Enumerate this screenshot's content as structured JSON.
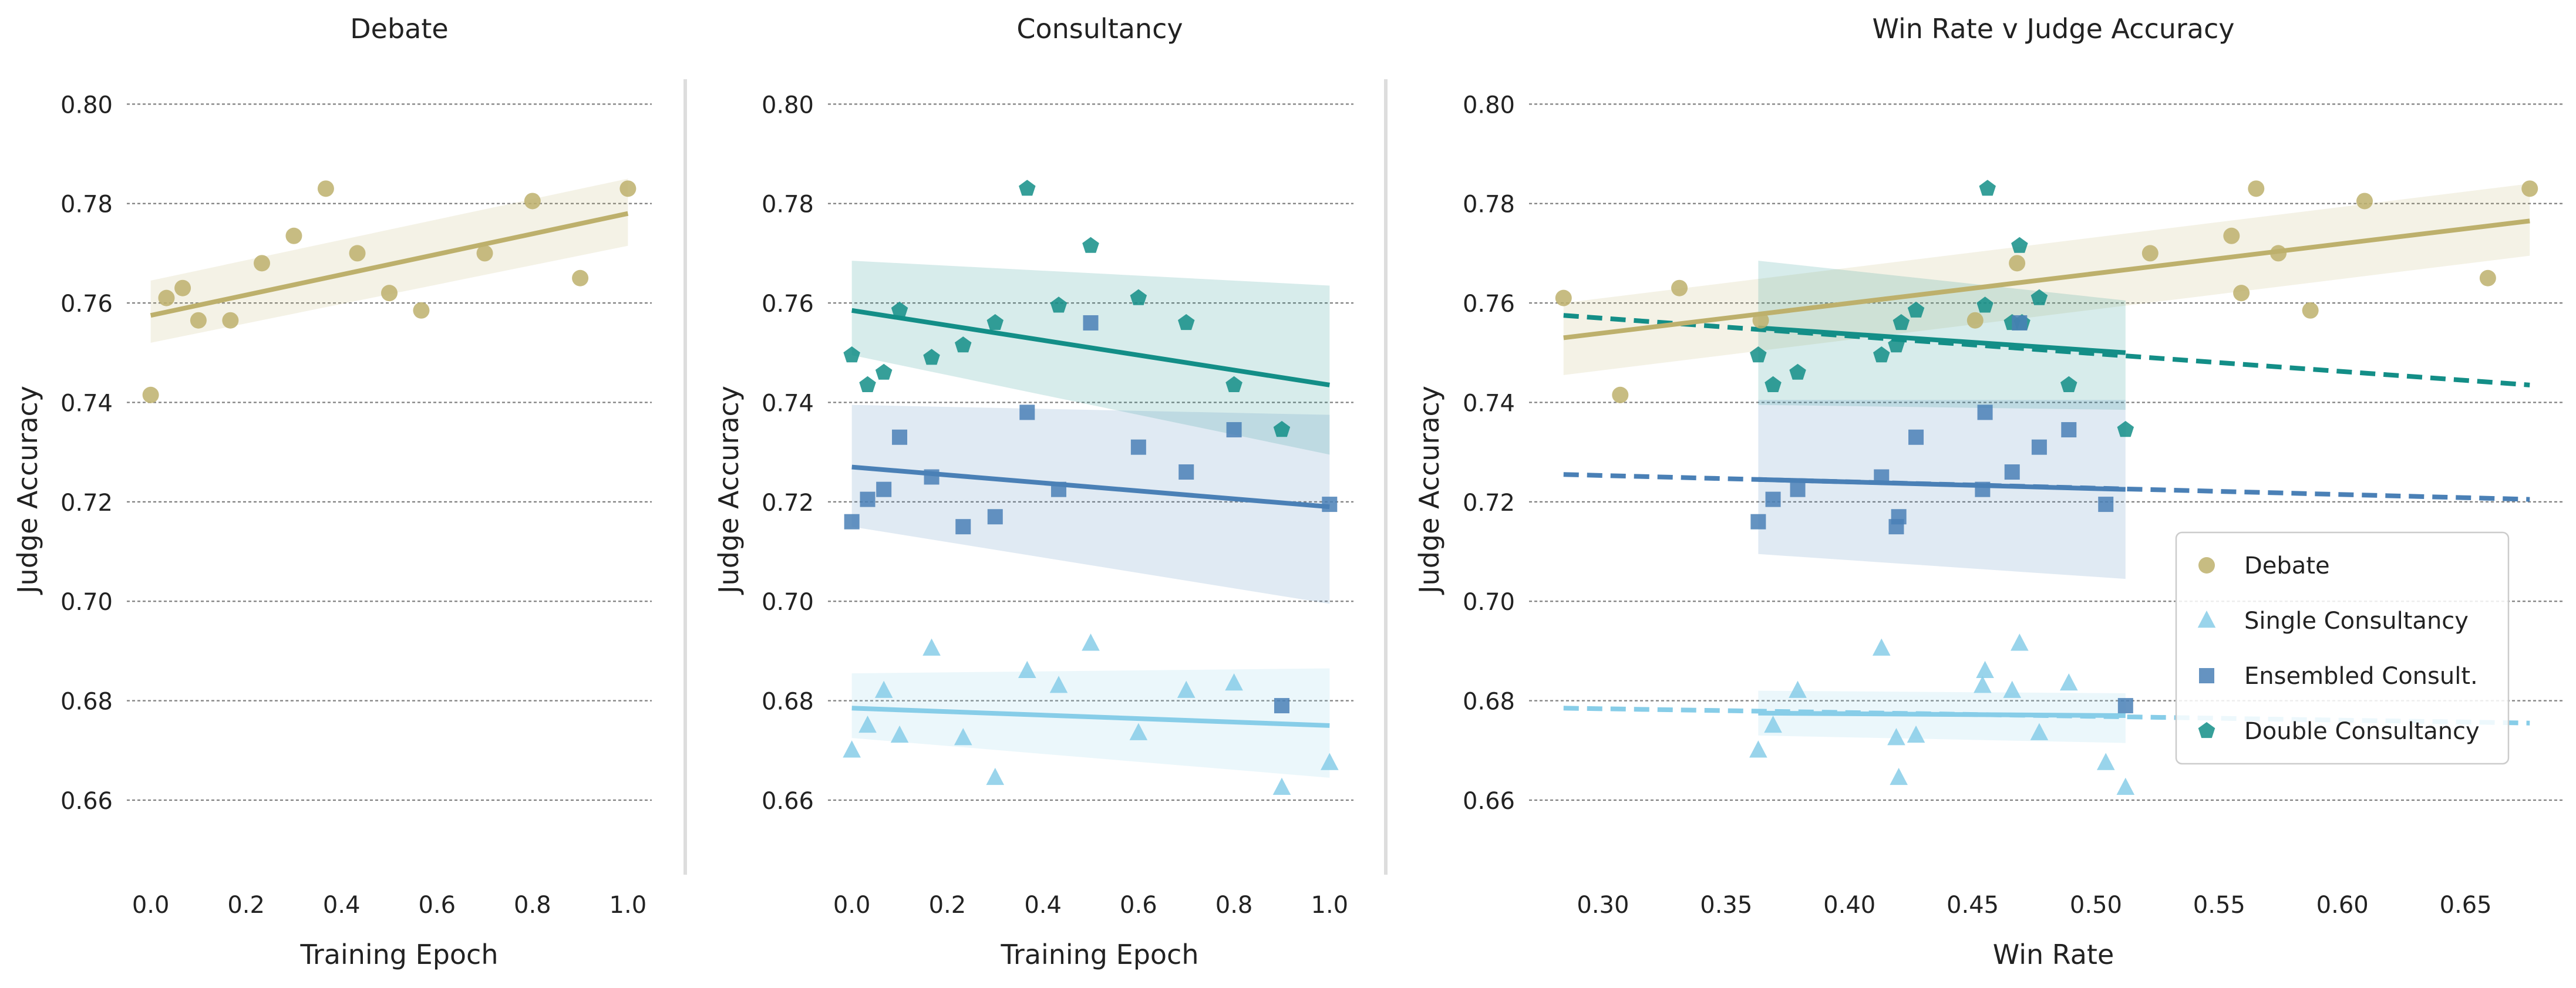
{
  "colors": {
    "debate": "#bdb06c",
    "single": "#87cde8",
    "ensembled": "#4a80b6",
    "double": "#138e87",
    "grid": "#808080",
    "separator": "#dddddd"
  },
  "chart_data": [
    {
      "type": "scatter",
      "title": "Debate",
      "xlabel": "Training Epoch",
      "ylabel": "Judge Accuracy",
      "xlim": [
        -0.05,
        1.05
      ],
      "ylim": [
        0.645,
        0.805
      ],
      "xticks": [
        0.0,
        0.2,
        0.4,
        0.6,
        0.8,
        1.0
      ],
      "xtick_labels": [
        "0.0",
        "0.2",
        "0.4",
        "0.6",
        "0.8",
        "1.0"
      ],
      "yticks": [
        0.66,
        0.68,
        0.7,
        0.72,
        0.74,
        0.76,
        0.78,
        0.8
      ],
      "ytick_labels": [
        "0.66",
        "0.68",
        "0.70",
        "0.72",
        "0.74",
        "0.76",
        "0.78",
        "0.80"
      ],
      "grid": "y-dashed",
      "series": [
        {
          "name": "Debate",
          "color_key": "debate",
          "marker": "circle",
          "x": [
            0.0,
            0.033,
            0.067,
            0.1,
            0.167,
            0.233,
            0.3,
            0.367,
            0.433,
            0.5,
            0.567,
            0.7,
            0.8,
            0.9,
            1.0
          ],
          "y": [
            0.7415,
            0.761,
            0.763,
            0.7565,
            0.7565,
            0.768,
            0.7735,
            0.783,
            0.77,
            0.762,
            0.7585,
            0.77,
            0.7805,
            0.765,
            0.783
          ],
          "fit": {
            "x": [
              0.0,
              1.0
            ],
            "y": [
              0.7575,
              0.778
            ],
            "style": "solid",
            "band_lower": [
              0.752,
              0.7715
            ],
            "band_upper": [
              0.7645,
              0.785
            ]
          }
        }
      ]
    },
    {
      "type": "scatter",
      "title": "Consultancy",
      "xlabel": "Training Epoch",
      "ylabel": "Judge Accuracy",
      "xlim": [
        -0.05,
        1.05
      ],
      "ylim": [
        0.645,
        0.805
      ],
      "xticks": [
        0.0,
        0.2,
        0.4,
        0.6,
        0.8,
        1.0
      ],
      "xtick_labels": [
        "0.0",
        "0.2",
        "0.4",
        "0.6",
        "0.8",
        "1.0"
      ],
      "yticks": [
        0.66,
        0.68,
        0.7,
        0.72,
        0.74,
        0.76,
        0.78,
        0.8
      ],
      "ytick_labels": [
        "0.66",
        "0.68",
        "0.70",
        "0.72",
        "0.74",
        "0.76",
        "0.78",
        "0.80"
      ],
      "grid": "y-dashed",
      "series": [
        {
          "name": "Double Consultancy",
          "color_key": "double",
          "marker": "pentagon",
          "x": [
            0.0,
            0.033,
            0.067,
            0.1,
            0.167,
            0.233,
            0.3,
            0.367,
            0.433,
            0.5,
            0.6,
            0.7,
            0.8,
            0.9
          ],
          "y": [
            0.7495,
            0.7435,
            0.746,
            0.7585,
            0.749,
            0.7515,
            0.756,
            0.783,
            0.7595,
            0.7715,
            0.761,
            0.756,
            0.7435,
            0.7345
          ],
          "fit": {
            "x": [
              0.0,
              1.0
            ],
            "y": [
              0.7585,
              0.7435
            ],
            "style": "solid",
            "band_lower": [
              0.7495,
              0.7295
            ],
            "band_upper": [
              0.7685,
              0.7635
            ]
          }
        },
        {
          "name": "Ensembled Consult.",
          "color_key": "ensembled",
          "marker": "square",
          "x": [
            0.0,
            0.033,
            0.067,
            0.1,
            0.167,
            0.233,
            0.3,
            0.367,
            0.433,
            0.5,
            0.6,
            0.7,
            0.8,
            0.9,
            1.0
          ],
          "y": [
            0.716,
            0.7205,
            0.7225,
            0.733,
            0.725,
            0.715,
            0.717,
            0.738,
            0.7225,
            0.756,
            0.731,
            0.726,
            0.7345,
            0.679,
            0.7195
          ],
          "fit": {
            "x": [
              0.0,
              1.0
            ],
            "y": [
              0.727,
              0.719
            ],
            "style": "solid",
            "band_lower": [
              0.715,
              0.6995
            ],
            "band_upper": [
              0.7395,
              0.7375
            ]
          }
        },
        {
          "name": "Single Consultancy",
          "color_key": "single",
          "marker": "triangle",
          "x": [
            0.0,
            0.033,
            0.067,
            0.1,
            0.167,
            0.233,
            0.3,
            0.367,
            0.433,
            0.5,
            0.6,
            0.7,
            0.8,
            0.9,
            1.0
          ],
          "y": [
            0.67,
            0.675,
            0.682,
            0.673,
            0.6905,
            0.6725,
            0.6645,
            0.686,
            0.683,
            0.6915,
            0.6735,
            0.682,
            0.6835,
            0.6625,
            0.6675
          ],
          "fit": {
            "x": [
              0.0,
              1.0
            ],
            "y": [
              0.6785,
              0.675
            ],
            "style": "solid",
            "band_lower": [
              0.6725,
              0.6645
            ],
            "band_upper": [
              0.6855,
              0.6865
            ]
          }
        }
      ]
    },
    {
      "type": "scatter",
      "title": "Win Rate v Judge Accuracy",
      "xlabel": "Win Rate",
      "ylabel": "Judge Accuracy",
      "xlim": [
        0.27,
        0.69
      ],
      "ylim": [
        0.645,
        0.805
      ],
      "xticks": [
        0.3,
        0.35,
        0.4,
        0.45,
        0.5,
        0.55,
        0.6,
        0.65
      ],
      "xtick_labels": [
        "0.30",
        "0.35",
        "0.40",
        "0.45",
        "0.50",
        "0.55",
        "0.60",
        "0.65"
      ],
      "yticks": [
        0.66,
        0.68,
        0.7,
        0.72,
        0.74,
        0.76,
        0.78,
        0.8
      ],
      "ytick_labels": [
        "0.66",
        "0.68",
        "0.70",
        "0.72",
        "0.74",
        "0.76",
        "0.78",
        "0.80"
      ],
      "grid": "y-dashed",
      "legend": {
        "position": "right-middle",
        "entries": [
          "Debate",
          "Single Consultancy",
          "Ensembled Consult.",
          "Double Consultancy"
        ]
      },
      "series": [
        {
          "name": "Debate",
          "color_key": "debate",
          "marker": "circle",
          "x": [
            0.284,
            0.307,
            0.331,
            0.364,
            0.451,
            0.468,
            0.522,
            0.555,
            0.559,
            0.565,
            0.574,
            0.587,
            0.609,
            0.659,
            0.676
          ],
          "y": [
            0.761,
            0.7415,
            0.763,
            0.7565,
            0.7565,
            0.768,
            0.77,
            0.7735,
            0.762,
            0.783,
            0.77,
            0.7585,
            0.7805,
            0.765,
            0.783
          ],
          "fit": {
            "x": [
              0.284,
              0.676
            ],
            "y": [
              0.753,
              0.7765
            ],
            "style": "solid",
            "band_lower": [
              0.7455,
              0.7695
            ],
            "band_upper": [
              0.76,
              0.784
            ]
          }
        },
        {
          "name": "Double Consultancy",
          "color_key": "double",
          "marker": "pentagon",
          "x": [
            0.363,
            0.369,
            0.379,
            0.413,
            0.419,
            0.421,
            0.427,
            0.455,
            0.456,
            0.466,
            0.469,
            0.47,
            0.477,
            0.489,
            0.512
          ],
          "y": [
            0.7495,
            0.7435,
            0.746,
            0.7495,
            0.7515,
            0.756,
            0.7585,
            0.7595,
            0.783,
            0.756,
            0.7715,
            0.756,
            0.761,
            0.7435,
            0.7345
          ],
          "fit": {
            "x": [
              0.363,
              0.512
            ],
            "y": [
              0.755,
              0.75
            ],
            "style": "solid",
            "band_lower": [
              0.7395,
              0.7385
            ],
            "band_upper": [
              0.7685,
              0.7605
            ]
          },
          "trend": {
            "x": [
              0.284,
              0.676
            ],
            "y": [
              0.7575,
              0.7435
            ],
            "style": "dashed"
          }
        },
        {
          "name": "Ensembled Consult.",
          "color_key": "ensembled",
          "marker": "square",
          "x": [
            0.363,
            0.369,
            0.379,
            0.413,
            0.419,
            0.42,
            0.427,
            0.454,
            0.455,
            0.466,
            0.469,
            0.477,
            0.489,
            0.504,
            0.512
          ],
          "y": [
            0.716,
            0.7205,
            0.7225,
            0.725,
            0.715,
            0.717,
            0.733,
            0.7225,
            0.738,
            0.726,
            0.756,
            0.731,
            0.7345,
            0.7195,
            0.679
          ],
          "fit": {
            "x": [
              0.363,
              0.512
            ],
            "y": [
              0.7245,
              0.7225
            ],
            "style": "solid",
            "band_lower": [
              0.7095,
              0.7045
            ],
            "band_upper": [
              0.7405,
              0.7405
            ]
          },
          "trend": {
            "x": [
              0.284,
              0.676
            ],
            "y": [
              0.7255,
              0.7205
            ],
            "style": "dashed"
          }
        },
        {
          "name": "Single Consultancy",
          "color_key": "single",
          "marker": "triangle",
          "x": [
            0.363,
            0.369,
            0.379,
            0.413,
            0.419,
            0.42,
            0.427,
            0.454,
            0.455,
            0.466,
            0.469,
            0.477,
            0.489,
            0.504,
            0.512
          ],
          "y": [
            0.67,
            0.675,
            0.682,
            0.6905,
            0.6725,
            0.6645,
            0.673,
            0.683,
            0.686,
            0.682,
            0.6915,
            0.6735,
            0.6835,
            0.6675,
            0.6625
          ],
          "fit": {
            "x": [
              0.363,
              0.512
            ],
            "y": [
              0.6775,
              0.677
            ],
            "style": "solid",
            "band_lower": [
              0.673,
              0.6715
            ],
            "band_upper": [
              0.682,
              0.6815
            ]
          },
          "trend": {
            "x": [
              0.284,
              0.676
            ],
            "y": [
              0.6785,
              0.6755
            ],
            "style": "dashed"
          }
        }
      ]
    }
  ]
}
